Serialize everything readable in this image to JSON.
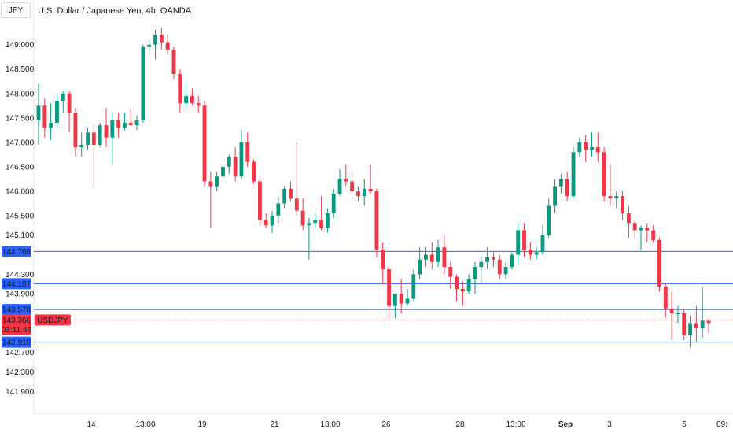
{
  "symbol_label": "JPY",
  "title": "U.S. Dollar / Japanese Yen, 4h, OANDA",
  "price_tag": "143.366",
  "countdown": "03:11:46",
  "ticker": "USDJPY",
  "colors": {
    "up": "#089981",
    "down": "#f23645",
    "line": "#2962ff",
    "label_bg": "#2962ff"
  },
  "chart_data": {
    "type": "candlestick",
    "title": "U.S. Dollar / Japanese Yen, 4h, OANDA",
    "ylim": [
      141.55,
      149.35
    ],
    "y_ticks": [
      "149.000",
      "148.500",
      "148.000",
      "147.500",
      "147.000",
      "146.500",
      "146.000",
      "145.500",
      "145.100",
      "144.300",
      "143.900",
      "142.700",
      "142.300",
      "141.900"
    ],
    "x_ticks": [
      "14",
      "13:00",
      "19",
      "21",
      "13:00",
      "26",
      "28",
      "13:00",
      "Sep",
      "3",
      "5",
      "09:"
    ],
    "horizontal_levels": [
      144.768,
      144.107,
      143.578,
      142.91
    ],
    "horizontal_level_labels": [
      "144.768",
      "144.107",
      "143.578",
      "142.910"
    ],
    "last_price": 143.366,
    "candles": [
      [
        147.45,
        148.2,
        146.95,
        147.75
      ],
      [
        147.75,
        147.9,
        147.1,
        147.3
      ],
      [
        147.3,
        147.8,
        147.05,
        147.4
      ],
      [
        147.4,
        147.95,
        147.3,
        147.85
      ],
      [
        147.85,
        148.05,
        147.6,
        148.0
      ],
      [
        148.0,
        148.05,
        147.2,
        147.6
      ],
      [
        147.6,
        147.7,
        146.7,
        146.9
      ],
      [
        146.9,
        147.2,
        146.7,
        146.95
      ],
      [
        146.95,
        147.3,
        146.85,
        147.2
      ],
      [
        147.2,
        147.35,
        146.05,
        146.95
      ],
      [
        146.95,
        147.4,
        146.9,
        147.35
      ],
      [
        147.35,
        147.7,
        146.9,
        147.1
      ],
      [
        147.1,
        147.6,
        146.55,
        147.45
      ],
      [
        147.45,
        147.6,
        147.1,
        147.3
      ],
      [
        147.3,
        147.6,
        147.25,
        147.4
      ],
      [
        147.4,
        147.7,
        147.35,
        147.35
      ],
      [
        147.35,
        147.55,
        147.25,
        147.45
      ],
      [
        147.45,
        149.0,
        147.4,
        148.95
      ],
      [
        148.95,
        149.1,
        148.8,
        149.0
      ],
      [
        149.0,
        149.3,
        148.7,
        149.2
      ],
      [
        149.2,
        149.35,
        148.9,
        149.05
      ],
      [
        149.05,
        149.2,
        148.8,
        148.9
      ],
      [
        148.9,
        148.95,
        148.3,
        148.4
      ],
      [
        148.4,
        148.5,
        147.6,
        147.8
      ],
      [
        147.8,
        148.2,
        147.7,
        147.95
      ],
      [
        147.95,
        148.1,
        147.75,
        147.8
      ],
      [
        147.8,
        147.95,
        147.6,
        147.75
      ],
      [
        147.75,
        147.85,
        146.1,
        146.2
      ],
      [
        146.2,
        146.4,
        145.25,
        146.1
      ],
      [
        146.1,
        146.4,
        146.0,
        146.3
      ],
      [
        146.3,
        146.7,
        146.2,
        146.5
      ],
      [
        146.5,
        146.75,
        146.35,
        146.7
      ],
      [
        146.7,
        146.9,
        146.2,
        146.3
      ],
      [
        146.3,
        147.25,
        146.25,
        147.0
      ],
      [
        147.0,
        147.2,
        146.5,
        146.6
      ],
      [
        146.6,
        146.65,
        146.15,
        146.2
      ],
      [
        146.2,
        146.3,
        145.3,
        145.4
      ],
      [
        145.4,
        145.55,
        145.25,
        145.3
      ],
      [
        145.3,
        145.6,
        145.15,
        145.5
      ],
      [
        145.5,
        145.9,
        145.35,
        145.75
      ],
      [
        145.75,
        146.1,
        145.65,
        146.05
      ],
      [
        146.05,
        146.2,
        145.8,
        145.85
      ],
      [
        145.85,
        147.0,
        145.5,
        145.6
      ],
      [
        145.6,
        145.85,
        145.2,
        145.3
      ],
      [
        145.3,
        145.45,
        144.6,
        145.35
      ],
      [
        145.35,
        145.55,
        145.25,
        145.4
      ],
      [
        145.4,
        145.9,
        145.2,
        145.25
      ],
      [
        145.25,
        145.65,
        145.15,
        145.55
      ],
      [
        145.55,
        146.05,
        145.45,
        145.95
      ],
      [
        145.95,
        146.45,
        145.9,
        146.25
      ],
      [
        146.25,
        146.55,
        146.1,
        146.2
      ],
      [
        146.2,
        146.4,
        145.95,
        146.0
      ],
      [
        146.0,
        146.1,
        145.8,
        145.9
      ],
      [
        145.9,
        146.25,
        145.7,
        146.05
      ],
      [
        146.05,
        146.55,
        145.95,
        146.0
      ],
      [
        146.0,
        146.05,
        144.65,
        144.8
      ],
      [
        144.8,
        144.95,
        144.1,
        144.4
      ],
      [
        144.4,
        144.45,
        143.4,
        143.65
      ],
      [
        143.65,
        143.9,
        143.4,
        143.9
      ],
      [
        143.9,
        144.2,
        143.5,
        143.7
      ],
      [
        143.7,
        144.0,
        143.65,
        143.8
      ],
      [
        143.8,
        144.4,
        143.75,
        144.3
      ],
      [
        144.3,
        144.85,
        144.2,
        144.6
      ],
      [
        144.6,
        144.85,
        144.45,
        144.7
      ],
      [
        144.7,
        144.95,
        144.4,
        144.55
      ],
      [
        144.55,
        145.0,
        144.45,
        144.85
      ],
      [
        144.85,
        145.1,
        144.3,
        144.45
      ],
      [
        144.45,
        144.55,
        144.0,
        144.25
      ],
      [
        144.25,
        144.3,
        143.75,
        144.0
      ],
      [
        144.0,
        144.15,
        143.65,
        143.95
      ],
      [
        143.95,
        144.3,
        143.9,
        144.2
      ],
      [
        144.2,
        144.55,
        143.9,
        144.45
      ],
      [
        144.45,
        144.65,
        144.1,
        144.55
      ],
      [
        144.55,
        144.85,
        144.4,
        144.65
      ],
      [
        144.65,
        144.75,
        144.45,
        144.6
      ],
      [
        144.6,
        144.7,
        144.2,
        144.3
      ],
      [
        144.3,
        144.55,
        144.2,
        144.45
      ],
      [
        144.45,
        144.75,
        144.4,
        144.7
      ],
      [
        144.7,
        145.35,
        144.5,
        145.2
      ],
      [
        145.2,
        145.35,
        144.65,
        144.8
      ],
      [
        144.8,
        144.95,
        144.6,
        144.7
      ],
      [
        144.7,
        144.85,
        144.6,
        144.75
      ],
      [
        144.75,
        145.3,
        144.7,
        145.1
      ],
      [
        145.1,
        145.85,
        145.05,
        145.7
      ],
      [
        145.7,
        146.25,
        145.55,
        146.1
      ],
      [
        146.1,
        146.35,
        145.95,
        146.25
      ],
      [
        146.25,
        146.4,
        145.8,
        145.9
      ],
      [
        145.9,
        146.9,
        145.85,
        146.8
      ],
      [
        146.8,
        147.1,
        146.7,
        147.0
      ],
      [
        147.0,
        147.15,
        146.6,
        146.85
      ],
      [
        146.85,
        147.2,
        146.7,
        146.9
      ],
      [
        146.9,
        147.2,
        146.6,
        146.8
      ],
      [
        146.8,
        146.9,
        145.8,
        145.9
      ],
      [
        145.9,
        146.55,
        145.7,
        145.85
      ],
      [
        145.85,
        146.0,
        145.65,
        145.9
      ],
      [
        145.9,
        146.0,
        145.4,
        145.55
      ],
      [
        145.55,
        145.7,
        145.05,
        145.35
      ],
      [
        145.35,
        145.4,
        145.05,
        145.2
      ],
      [
        145.2,
        145.3,
        144.8,
        145.25
      ],
      [
        145.25,
        145.35,
        144.95,
        145.2
      ],
      [
        145.2,
        145.3,
        144.95,
        145.0
      ],
      [
        145.0,
        145.05,
        143.95,
        144.05
      ],
      [
        144.05,
        144.1,
        143.4,
        143.6
      ],
      [
        143.6,
        143.95,
        142.95,
        143.5
      ],
      [
        143.5,
        143.65,
        143.3,
        143.5
      ],
      [
        143.5,
        143.6,
        142.95,
        143.05
      ],
      [
        143.05,
        143.45,
        142.8,
        143.3
      ],
      [
        143.3,
        143.65,
        142.9,
        143.2
      ],
      [
        143.2,
        144.05,
        143.0,
        143.35
      ],
      [
        143.35,
        143.4,
        143.1,
        143.3
      ]
    ]
  }
}
